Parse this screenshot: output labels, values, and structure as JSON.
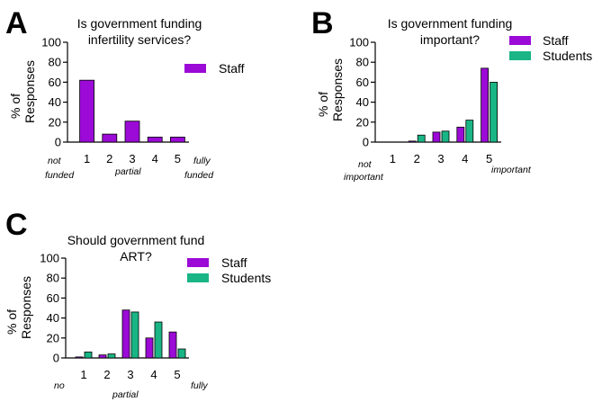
{
  "colors": {
    "staff": "#9b0ad6",
    "students": "#19b585",
    "axis": "#000000"
  },
  "chart_data": [
    {
      "id": "A",
      "panel_label": "A",
      "type": "bar",
      "title_lines": [
        "Is government funding",
        "infertility services?"
      ],
      "ylabel_lines": [
        "% of",
        "Responses"
      ],
      "categories": [
        "1",
        "2",
        "3",
        "4",
        "5"
      ],
      "ylim": [
        0,
        100
      ],
      "yticks": [
        0,
        20,
        40,
        60,
        80,
        100
      ],
      "series": [
        {
          "name": "Staff",
          "color_key": "staff",
          "values": [
            62,
            8,
            21,
            5,
            5
          ]
        }
      ],
      "annotations": [
        {
          "text": "not",
          "at": "below-cat-1-line1"
        },
        {
          "text": "funded",
          "at": "below-cat-1-line2"
        },
        {
          "text": "partial",
          "at": "below-cat-3"
        },
        {
          "text": "fully",
          "at": "below-cat-5-line1"
        },
        {
          "text": "funded",
          "at": "below-cat-5-line2"
        }
      ]
    },
    {
      "id": "B",
      "panel_label": "B",
      "type": "bar",
      "title_lines": [
        "Is government funding",
        "important?"
      ],
      "ylabel_lines": [
        "% of",
        "Responses"
      ],
      "categories": [
        "1",
        "2",
        "3",
        "4",
        "5"
      ],
      "ylim": [
        0,
        100
      ],
      "yticks": [
        0,
        20,
        40,
        60,
        80,
        100
      ],
      "series": [
        {
          "name": "Staff",
          "color_key": "staff",
          "values": [
            0,
            1,
            10,
            15,
            74
          ]
        },
        {
          "name": "Students",
          "color_key": "students",
          "values": [
            0,
            7,
            11,
            22,
            60
          ]
        }
      ],
      "annotations": [
        {
          "text": "not",
          "at": "below-cat-1-line1"
        },
        {
          "text": "important",
          "at": "below-cat-1-line2"
        },
        {
          "text": "important",
          "at": "right-of-cat-5"
        }
      ]
    },
    {
      "id": "C",
      "panel_label": "C",
      "type": "bar",
      "title_lines": [
        "Should government fund",
        "ART?"
      ],
      "ylabel_lines": [
        "% of",
        "Responses"
      ],
      "categories": [
        "1",
        "2",
        "3",
        "4",
        "5"
      ],
      "ylim": [
        0,
        100
      ],
      "yticks": [
        0,
        20,
        40,
        60,
        80,
        100
      ],
      "series": [
        {
          "name": "Staff",
          "color_key": "staff",
          "values": [
            1,
            3,
            48,
            20,
            26
          ]
        },
        {
          "name": "Students",
          "color_key": "students",
          "values": [
            6,
            4,
            46,
            36,
            9
          ]
        }
      ],
      "annotations": [
        {
          "text": "no",
          "at": "below-left"
        },
        {
          "text": "partial",
          "at": "below-cat-3"
        },
        {
          "text": "fully",
          "at": "below-right"
        }
      ]
    }
  ]
}
